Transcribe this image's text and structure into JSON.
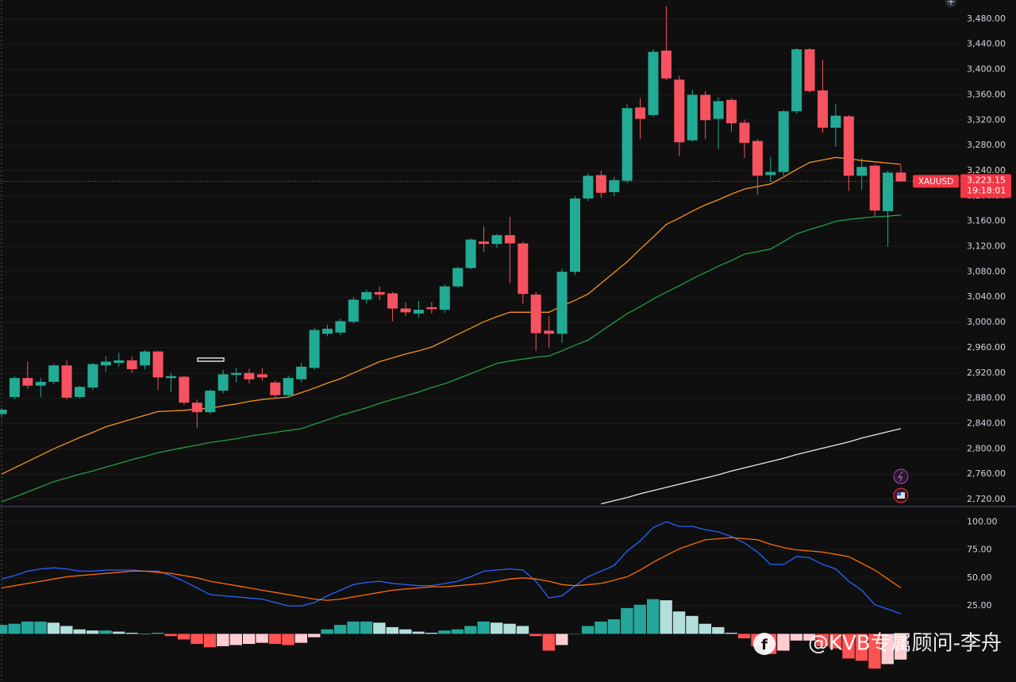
{
  "chart_data": [
    {
      "type": "candlestick",
      "symbol": "XAUUSD",
      "up_color": "#22ab94",
      "down_color": "#f7525f",
      "open": [
        2855,
        2882,
        2912,
        2900,
        2906,
        2932,
        2882,
        2897,
        2932,
        2936,
        2940,
        2932,
        2954,
        2912,
        2914,
        2873,
        2858,
        2892,
        2917,
        2920,
        2918,
        2905,
        2885,
        2910,
        2928,
        2982,
        2984,
        3001,
        3036,
        3048,
        3046,
        3022,
        3014,
        3024,
        3020,
        3057,
        3086,
        3128,
        3124,
        3138,
        3125,
        3044,
        2987,
        2982,
        3080,
        3196,
        3233,
        3206,
        3224,
        3340,
        3328,
        3430,
        3384,
        3288,
        3360,
        3322,
        3352,
        3316,
        3287,
        3233,
        3238,
        3334,
        3432,
        3367,
        3308,
        3326,
        3232,
        3248,
        3176,
        3237
      ],
      "high": [
        2865,
        2915,
        2938,
        2912,
        2934,
        2940,
        2900,
        2936,
        2946,
        2952,
        2946,
        2956,
        2955,
        2920,
        2916,
        2878,
        2894,
        2925,
        2928,
        2927,
        2928,
        2908,
        2916,
        2936,
        2992,
        2996,
        3006,
        3040,
        3052,
        3057,
        3048,
        3032,
        3034,
        3032,
        3060,
        3088,
        3133,
        3152,
        3140,
        3167,
        3128,
        3048,
        3010,
        3085,
        3200,
        3236,
        3240,
        3230,
        3345,
        3355,
        3432,
        3500,
        3390,
        3368,
        3366,
        3356,
        3355,
        3321,
        3290,
        3262,
        3336,
        3434,
        3434,
        3415,
        3345,
        3328,
        3260,
        3250,
        3240,
        3248
      ],
      "low": [
        2850,
        2878,
        2895,
        2882,
        2902,
        2878,
        2880,
        2893,
        2922,
        2930,
        2920,
        2926,
        2893,
        2890,
        2870,
        2833,
        2855,
        2888,
        2905,
        2903,
        2908,
        2880,
        2882,
        2905,
        2925,
        2978,
        2980,
        2998,
        3030,
        3035,
        3002,
        3010,
        3008,
        3014,
        3015,
        3055,
        3084,
        3112,
        3118,
        3062,
        3030,
        2955,
        2960,
        2968,
        3075,
        3192,
        3197,
        3200,
        3220,
        3290,
        3325,
        3383,
        3263,
        3286,
        3290,
        3274,
        3302,
        3260,
        3202,
        3222,
        3232,
        3330,
        3363,
        3300,
        3278,
        3208,
        3210,
        3168,
        3120,
        3222
      ],
      "close": [
        2862,
        2912,
        2900,
        2906,
        2932,
        2881,
        2898,
        2934,
        2938,
        2940,
        2926,
        2954,
        2913,
        2915,
        2873,
        2858,
        2892,
        2918,
        2920,
        2910,
        2913,
        2885,
        2912,
        2930,
        2988,
        2990,
        3002,
        3036,
        3048,
        3044,
        3022,
        3016,
        3020,
        3021,
        3057,
        3086,
        3131,
        3124,
        3138,
        3125,
        3045,
        2983,
        2982,
        3080,
        3196,
        3232,
        3205,
        3225,
        3339,
        3322,
        3428,
        3386,
        3285,
        3360,
        3320,
        3350,
        3315,
        3284,
        3232,
        3238,
        3334,
        3432,
        3366,
        3308,
        3327,
        3232,
        3246,
        3177,
        3237,
        3223
      ],
      "series": [
        {
          "color": "#f7931a",
          "values": [
            2760,
            2770,
            2780,
            2790,
            2800,
            2809,
            2818,
            2826,
            2835,
            2841,
            2847,
            2853,
            2859,
            2860,
            2861,
            2863,
            2864,
            2868,
            2871,
            2875,
            2878,
            2880,
            2882,
            2889,
            2896,
            2904,
            2911,
            2920,
            2929,
            2938,
            2944,
            2950,
            2955,
            2961,
            2971,
            2981,
            2991,
            3001,
            3009,
            3016,
            3016,
            3016,
            3016,
            3026,
            3035,
            3045,
            3062,
            3079,
            3096,
            3116,
            3135,
            3155,
            3165,
            3176,
            3186,
            3194,
            3203,
            3211,
            3215,
            3219,
            3230,
            3242,
            3253,
            3257,
            3261,
            3259,
            3256,
            3254,
            3252,
            3250
          ]
        },
        {
          "color": "#1f9d45",
          "values": [
            2716,
            2724,
            2732,
            2740,
            2748,
            2754,
            2760,
            2765,
            2771,
            2777,
            2783,
            2788,
            2794,
            2798,
            2802,
            2806,
            2810,
            2813,
            2816,
            2820,
            2823,
            2826,
            2829,
            2832,
            2839,
            2846,
            2853,
            2859,
            2865,
            2872,
            2878,
            2884,
            2890,
            2897,
            2903,
            2911,
            2919,
            2927,
            2935,
            2939,
            2942,
            2945,
            2947,
            2955,
            2964,
            2972,
            2986,
            3000,
            3014,
            3025,
            3037,
            3048,
            3058,
            3069,
            3079,
            3089,
            3098,
            3108,
            3112,
            3116,
            3128,
            3140,
            3147,
            3153,
            3160,
            3163,
            3165,
            3167,
            3168,
            3170
          ]
        },
        {
          "color": "#e8e8e8",
          "values": [
            null,
            null,
            null,
            null,
            null,
            null,
            null,
            null,
            null,
            null,
            null,
            null,
            null,
            null,
            null,
            null,
            null,
            null,
            null,
            null,
            null,
            null,
            null,
            null,
            null,
            null,
            null,
            null,
            null,
            null,
            null,
            null,
            null,
            null,
            null,
            null,
            null,
            null,
            null,
            null,
            null,
            null,
            null,
            null,
            null,
            null,
            2713,
            2718,
            2723,
            2729,
            2734,
            2739,
            2744,
            2749,
            2754,
            2759,
            2765,
            2770,
            2775,
            2780,
            2785,
            2791,
            2796,
            2801,
            2806,
            2811,
            2817,
            2822,
            2827,
            2832
          ]
        }
      ],
      "ylim": [
        2710,
        3510
      ],
      "yticks": [
        {
          "value": 2720,
          "label": "2,720.00"
        },
        {
          "value": 2760,
          "label": "2,760.00"
        },
        {
          "value": 2800,
          "label": "2,800.00"
        },
        {
          "value": 2840,
          "label": "2,840.00"
        },
        {
          "value": 2880,
          "label": "2,880.00"
        },
        {
          "value": 2920,
          "label": "2,920.00"
        },
        {
          "value": 2960,
          "label": "2,960.00"
        },
        {
          "value": 3000,
          "label": "3,000.00"
        },
        {
          "value": 3040,
          "label": "3,040.00"
        },
        {
          "value": 3080,
          "label": "3,080.00"
        },
        {
          "value": 3120,
          "label": "3,120.00"
        },
        {
          "value": 3160,
          "label": "3,160.00"
        },
        {
          "value": 3200,
          "label": "3,200.00"
        },
        {
          "value": 3240,
          "label": "3,240.00"
        },
        {
          "value": 3280,
          "label": "3,280.00"
        },
        {
          "value": 3320,
          "label": "3,320.00"
        },
        {
          "value": 3360,
          "label": "3,360.00"
        },
        {
          "value": 3400,
          "label": "3,400.00"
        },
        {
          "value": 3440,
          "label": "3,440.00"
        },
        {
          "value": 3480,
          "label": "3,480.00"
        }
      ],
      "last_price": {
        "value": 3223.15,
        "label": "3,223.15",
        "countdown": "19:18:01",
        "color": "#f23645"
      },
      "grid": true
    },
    {
      "type": "macd",
      "series": [
        {
          "color": "#2962ff",
          "values": [
            49,
            52,
            56,
            58,
            59,
            58,
            56,
            56,
            57,
            57,
            57,
            56,
            56,
            52,
            47,
            41,
            35,
            34,
            33,
            32,
            31,
            28,
            25,
            25,
            28,
            34,
            39,
            44,
            46,
            47,
            45,
            44,
            43,
            43,
            45,
            47,
            51,
            56,
            57,
            58,
            57,
            47,
            32,
            34,
            43,
            51,
            56,
            61,
            74,
            83,
            95,
            100,
            96,
            96,
            93,
            91,
            87,
            81,
            73,
            62,
            62,
            69,
            68,
            62,
            58,
            47,
            39,
            26,
            22,
            18
          ]
        },
        {
          "color": "#ff6d00",
          "values": [
            41,
            43,
            45,
            47,
            49,
            51,
            52,
            53,
            54,
            55,
            56,
            56,
            55,
            54,
            52,
            50,
            47,
            45,
            43,
            41,
            39,
            37,
            35,
            33,
            31,
            30,
            31,
            33,
            35,
            37,
            39,
            40,
            41,
            42,
            42,
            43,
            44,
            45,
            47,
            49,
            50,
            49,
            47,
            44,
            43,
            44,
            45,
            48,
            51,
            57,
            64,
            70,
            76,
            80,
            84,
            85,
            86,
            85,
            84,
            80,
            77,
            75,
            74,
            73,
            71,
            69,
            63,
            57,
            49,
            41
          ]
        }
      ],
      "histogram": {
        "colors": [
          "#26a69a",
          "#b2dfdb",
          "#ff5252",
          "#ffcdd2"
        ],
        "values": [
          8,
          9,
          11,
          11,
          10,
          7,
          4,
          3,
          3,
          2,
          1,
          0,
          1,
          -2,
          -5,
          -9,
          -12,
          -11,
          -10,
          -9,
          -8,
          -9,
          -10,
          -8,
          -3,
          4,
          8,
          11,
          11,
          10,
          6,
          4,
          2,
          1,
          3,
          4,
          7,
          11,
          10,
          9,
          7,
          -2,
          -15,
          -10,
          0,
          7,
          11,
          13,
          23,
          26,
          31,
          30,
          20,
          16,
          9,
          6,
          1,
          -4,
          -11,
          -18,
          -15,
          -6,
          -6,
          -11,
          -13,
          -22,
          -24,
          -31,
          -27,
          -23
        ]
      },
      "ylim": [
        -43,
        113
      ],
      "yticks": [
        {
          "value": 25,
          "label": "25.00"
        },
        {
          "value": 50,
          "label": "50.00"
        },
        {
          "value": 75,
          "label": "75.00"
        },
        {
          "value": 100,
          "label": "100.00"
        }
      ],
      "watermark": "@KVB专属顾问-李舟"
    }
  ]
}
